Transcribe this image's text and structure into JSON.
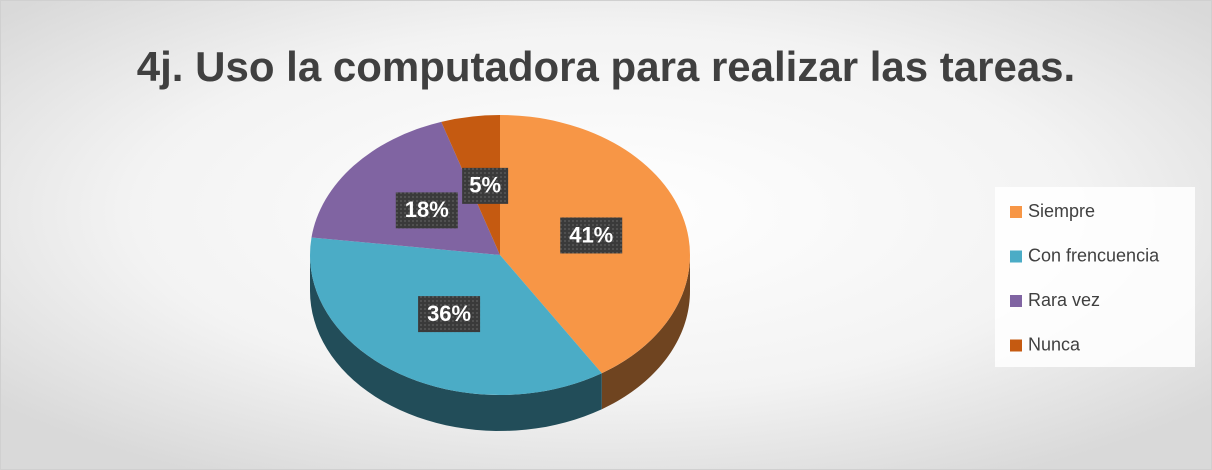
{
  "chart_data": {
    "type": "pie",
    "title": "4j. Uso la computadora para realizar las tareas.",
    "categories": [
      "Siempre",
      "Con frencuencia",
      "Rara vez",
      "Nunca"
    ],
    "values": [
      41,
      36,
      18,
      5
    ],
    "value_labels": [
      "41%",
      "36%",
      "18%",
      "5%"
    ],
    "colors": [
      "#f79646",
      "#4bacc6",
      "#8064a2",
      "#c55a11"
    ],
    "legend": "right"
  }
}
